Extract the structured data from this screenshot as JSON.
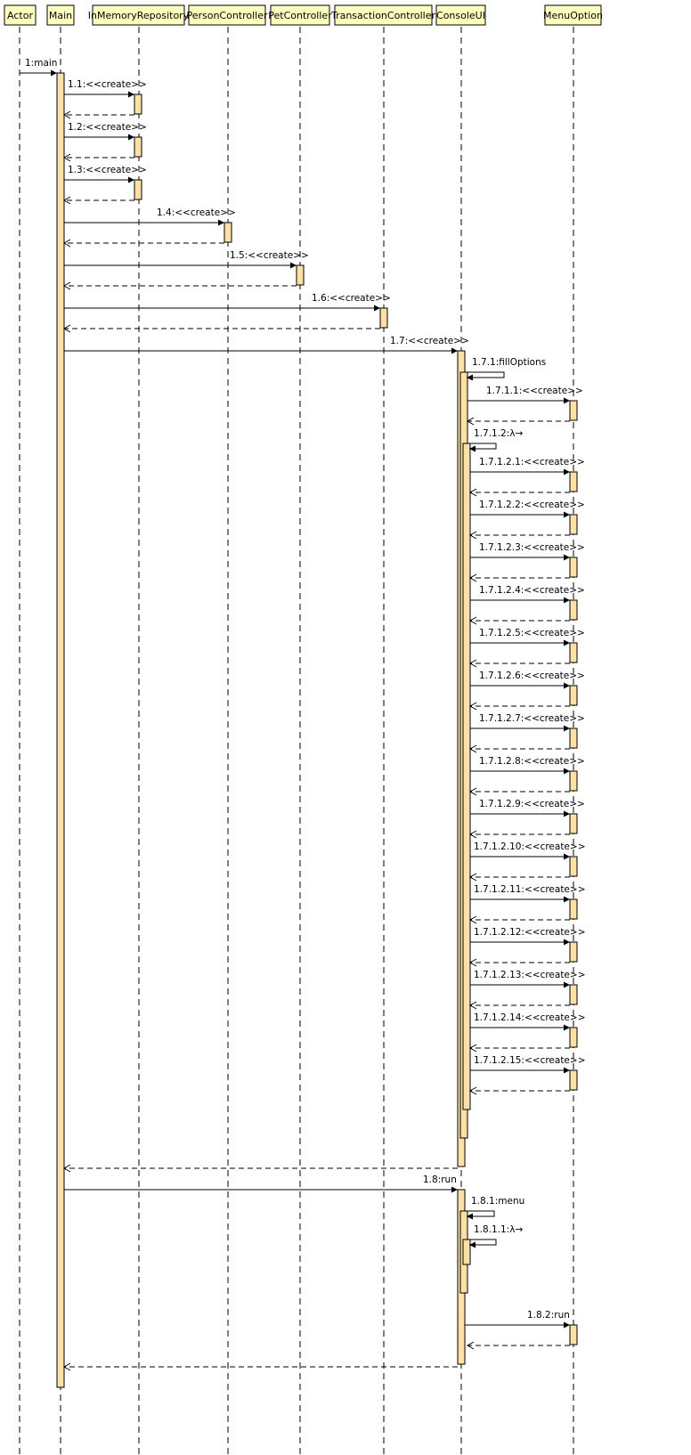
{
  "participants": [
    {
      "id": "actor",
      "label": "Actor"
    },
    {
      "id": "main",
      "label": "Main"
    },
    {
      "id": "repo",
      "label": "InMemoryRepository"
    },
    {
      "id": "person",
      "label": "PersonController"
    },
    {
      "id": "pet",
      "label": "PetController"
    },
    {
      "id": "trans",
      "label": "TransactionController"
    },
    {
      "id": "console",
      "label": "ConsoleUI"
    },
    {
      "id": "menu",
      "label": "MenuOption"
    }
  ],
  "messages": [
    {
      "label": "1:main"
    },
    {
      "label": "1.1:<<create>>"
    },
    {
      "label": "1.2:<<create>>"
    },
    {
      "label": "1.3:<<create>>"
    },
    {
      "label": "1.4:<<create>>"
    },
    {
      "label": "1.5:<<create>>"
    },
    {
      "label": "1.6:<<create>>"
    },
    {
      "label": "1.7:<<create>>"
    },
    {
      "label": "1.7.1:fillOptions"
    },
    {
      "label": "1.7.1.1:<<create>>"
    },
    {
      "label": "1.7.1.2:λ→"
    },
    {
      "label": "1.7.1.2.1:<<create>>"
    },
    {
      "label": "1.7.1.2.2:<<create>>"
    },
    {
      "label": "1.7.1.2.3:<<create>>"
    },
    {
      "label": "1.7.1.2.4:<<create>>"
    },
    {
      "label": "1.7.1.2.5:<<create>>"
    },
    {
      "label": "1.7.1.2.6:<<create>>"
    },
    {
      "label": "1.7.1.2.7:<<create>>"
    },
    {
      "label": "1.7.1.2.8:<<create>>"
    },
    {
      "label": "1.7.1.2.9:<<create>>"
    },
    {
      "label": "1.7.1.2.10:<<create>>"
    },
    {
      "label": "1.7.1.2.11:<<create>>"
    },
    {
      "label": "1.7.1.2.12:<<create>>"
    },
    {
      "label": "1.7.1.2.13:<<create>>"
    },
    {
      "label": "1.7.1.2.14:<<create>>"
    },
    {
      "label": "1.7.1.2.15:<<create>>"
    },
    {
      "label": "1.8:run"
    },
    {
      "label": "1.8.1:menu"
    },
    {
      "label": "1.8.1.1:λ→"
    },
    {
      "label": "1.8.2:run"
    }
  ],
  "colors": {
    "header_fill": "#ffffc0",
    "activation_fill": "#fde0a6",
    "line": "#000000"
  }
}
